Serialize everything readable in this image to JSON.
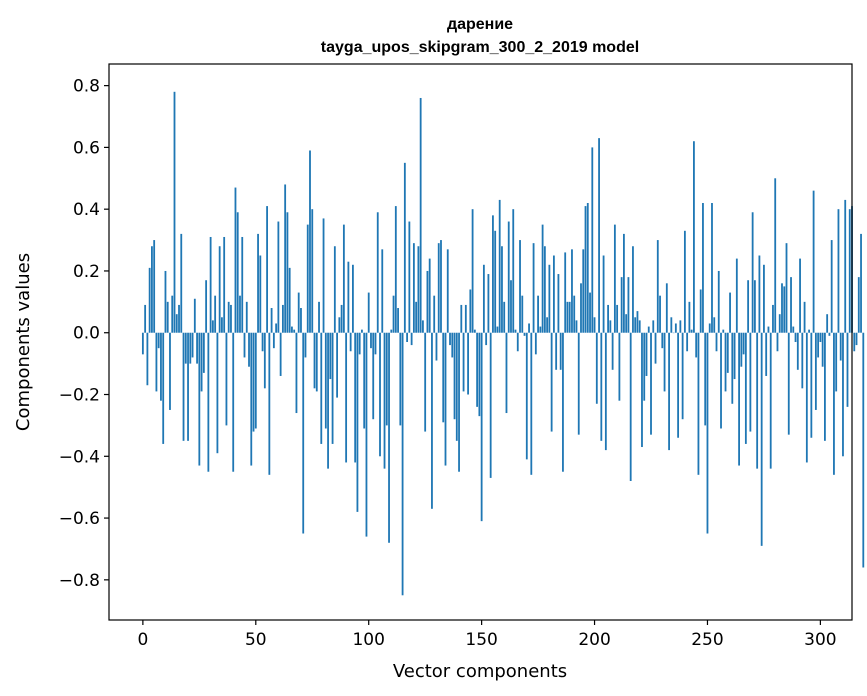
{
  "chart_data": {
    "type": "bar",
    "title_lines": [
      "дарение",
      "tayga_upos_skipgram_300_2_2019 model"
    ],
    "xlabel": "Vector components",
    "ylabel": "Components values",
    "xlim": [
      -15,
      314
    ],
    "ylim": [
      -0.93,
      0.87
    ],
    "xticks": [
      0,
      50,
      100,
      150,
      200,
      250,
      300
    ],
    "xtick_labels": [
      "0",
      "50",
      "100",
      "150",
      "200",
      "250",
      "300"
    ],
    "yticks": [
      -0.8,
      -0.6,
      -0.4,
      -0.2,
      0.0,
      0.2,
      0.4,
      0.6,
      0.8
    ],
    "ytick_labels": [
      "−0.8",
      "−0.6",
      "−0.4",
      "−0.2",
      "0.0",
      "0.2",
      "0.4",
      "0.6",
      "0.8"
    ],
    "bar_color": "#1f77b4",
    "grid": false,
    "values": [
      -0.07,
      0.09,
      -0.17,
      0.21,
      0.28,
      0.3,
      -0.19,
      -0.05,
      -0.22,
      -0.36,
      0.2,
      0.1,
      -0.25,
      0.12,
      0.78,
      0.06,
      0.09,
      0.32,
      -0.35,
      -0.1,
      -0.35,
      -0.1,
      -0.08,
      0.11,
      -0.1,
      -0.43,
      -0.19,
      -0.13,
      0.17,
      -0.45,
      0.31,
      0.04,
      0.12,
      -0.39,
      0.28,
      0.05,
      0.31,
      -0.3,
      0.1,
      0.09,
      -0.45,
      0.47,
      0.39,
      0.12,
      0.31,
      -0.08,
      0.1,
      -0.11,
      -0.43,
      -0.32,
      -0.31,
      0.32,
      0.25,
      -0.06,
      -0.18,
      0.41,
      -0.46,
      0.08,
      -0.05,
      0.03,
      0.36,
      -0.14,
      0.09,
      0.48,
      0.39,
      0.21,
      0.02,
      0.01,
      -0.26,
      0.13,
      0.08,
      -0.65,
      -0.08,
      0.35,
      0.59,
      0.4,
      -0.18,
      -0.19,
      0.1,
      -0.36,
      0.37,
      -0.31,
      -0.44,
      -0.15,
      -0.36,
      0.28,
      -0.21,
      0.05,
      0.09,
      0.35,
      -0.42,
      0.23,
      -0.06,
      0.22,
      -0.42,
      -0.58,
      -0.07,
      0.01,
      -0.31,
      -0.66,
      0.13,
      -0.05,
      -0.28,
      -0.07,
      0.39,
      -0.4,
      0.27,
      -0.44,
      -0.3,
      -0.68,
      0.01,
      0.12,
      0.41,
      0.08,
      -0.3,
      -0.85,
      0.55,
      -0.03,
      0.36,
      -0.04,
      0.29,
      0.1,
      0.28,
      0.76,
      0.04,
      -0.32,
      0.2,
      0.24,
      -0.57,
      0.12,
      -0.09,
      0.29,
      0.3,
      -0.29,
      -0.43,
      0.27,
      -0.04,
      -0.08,
      -0.28,
      -0.35,
      -0.45,
      0.09,
      -0.19,
      0.09,
      -0.2,
      0.14,
      0.4,
      0.01,
      -0.24,
      -0.27,
      -0.61,
      0.22,
      -0.04,
      0.19,
      -0.47,
      0.38,
      0.33,
      0.02,
      0.43,
      0.28,
      0.1,
      -0.26,
      0.36,
      0.17,
      0.4,
      0.01,
      -0.06,
      0.3,
      0.12,
      -0.01,
      -0.41,
      0.03,
      -0.46,
      0.29,
      -0.07,
      0.12,
      0.02,
      0.35,
      0.28,
      0.05,
      0.22,
      -0.32,
      0.25,
      -0.12,
      0.19,
      -0.12,
      -0.45,
      0.26,
      0.1,
      0.1,
      0.27,
      0.12,
      0.04,
      -0.33,
      0.16,
      0.27,
      0.41,
      0.42,
      0.13,
      0.6,
      0.05,
      -0.23,
      0.63,
      -0.35,
      0.25,
      -0.38,
      0.09,
      0.04,
      -0.12,
      0.35,
      0.09,
      -0.22,
      0.18,
      0.32,
      0.06,
      0.18,
      -0.48,
      0.28,
      0.05,
      0.07,
      0.04,
      -0.37,
      -0.22,
      -0.14,
      0.02,
      -0.33,
      0.04,
      -0.1,
      0.3,
      0.12,
      -0.05,
      -0.19,
      0.16,
      -0.38,
      0.05,
      0.0,
      0.03,
      -0.34,
      0.04,
      -0.28,
      0.33,
      -0.06,
      0.1,
      0.01,
      0.62,
      -0.08,
      -0.46,
      0.14,
      0.42,
      -0.3,
      -0.65,
      0.03,
      0.42,
      0.05,
      -0.06,
      0.2,
      -0.31,
      0.01,
      -0.19,
      -0.13,
      0.13,
      -0.23,
      -0.15,
      0.24,
      -0.43,
      -0.11,
      -0.07,
      -0.36,
      0.17,
      -0.32,
      0.39,
      0.17,
      -0.44,
      0.25,
      -0.69,
      0.22,
      -0.14,
      0.02,
      -0.44,
      0.09,
      0.5,
      -0.06,
      0.06,
      0.16,
      0.15,
      0.29,
      -0.33,
      0.18,
      0.02,
      -0.03,
      -0.12,
      0.24,
      -0.18,
      0.1,
      -0.42,
      0.01,
      -0.34,
      0.46,
      -0.25,
      -0.08,
      -0.03,
      -0.11,
      -0.35,
      0.06,
      -0.01,
      0.3,
      -0.46,
      -0.19,
      0.4,
      -0.09,
      -0.4,
      0.43,
      -0.24,
      0.4,
      0.41,
      -0.06,
      -0.04,
      0.18,
      0.32,
      -0.76
    ]
  }
}
